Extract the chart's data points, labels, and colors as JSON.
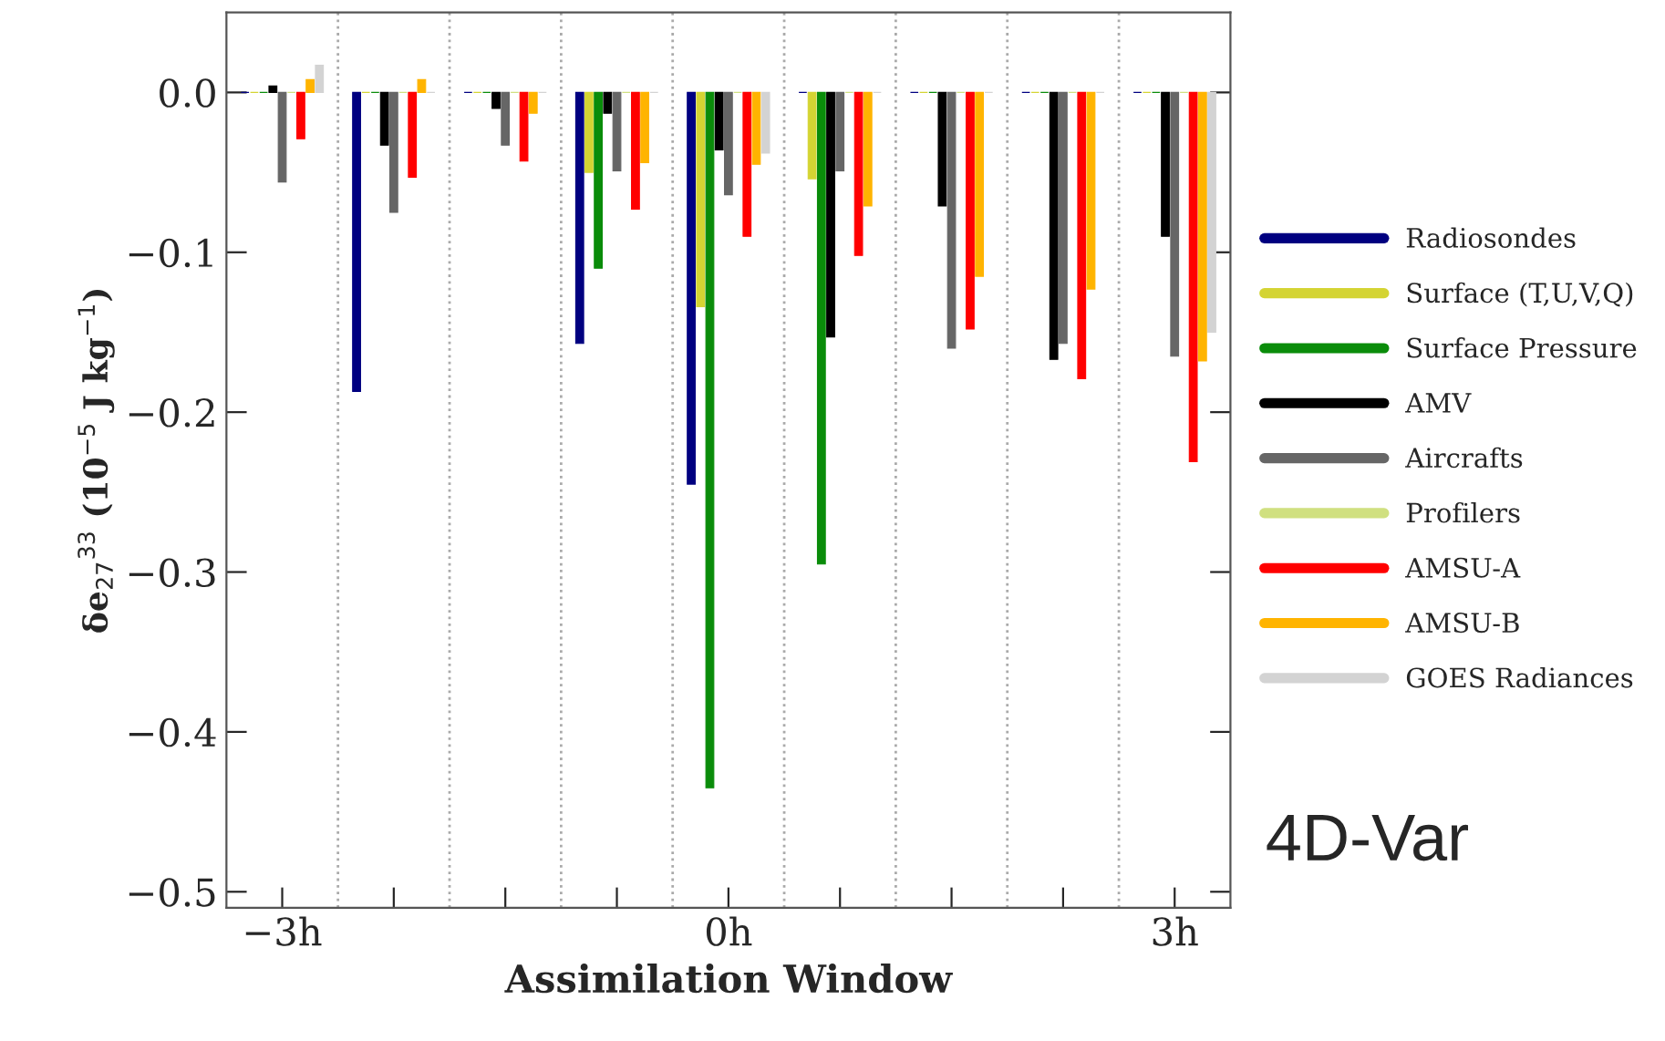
{
  "chart_data": {
    "type": "bar",
    "xlabel": "Assimilation Window",
    "ylabel": "δe$_{27}$$^{33}$ (10$^{−5}$ J kg$^{−1}$)",
    "x": [
      -3,
      -2.25,
      -1.5,
      -0.75,
      0,
      0.75,
      1.5,
      2.25,
      3
    ],
    "xlim": [
      -3.375,
      3.375
    ],
    "xticks": [
      {
        "value": -3,
        "label": "−3h"
      },
      {
        "value": -2.25,
        "label": null
      },
      {
        "value": -1.5,
        "label": null
      },
      {
        "value": -0.75,
        "label": null
      },
      {
        "value": 0,
        "label": "0h"
      },
      {
        "value": 0.75,
        "label": null
      },
      {
        "value": 1.5,
        "label": null
      },
      {
        "value": 2.25,
        "label": null
      },
      {
        "value": 3,
        "label": "3h"
      }
    ],
    "ylim": [
      -0.51,
      0.05
    ],
    "yticks": [
      {
        "value": 0,
        "label": "0.0"
      },
      {
        "value": -0.1,
        "label": "−0.1"
      },
      {
        "value": -0.2,
        "label": "−0.2"
      },
      {
        "value": -0.3,
        "label": "−0.3"
      },
      {
        "value": -0.4,
        "label": "−0.4"
      },
      {
        "value": -0.5,
        "label": "−0.5"
      }
    ],
    "series": [
      {
        "name": "Radiosondes",
        "color": "#000080",
        "values": [
          0,
          -0.187,
          0,
          -0.157,
          -0.245,
          0,
          0,
          0,
          0
        ]
      },
      {
        "name": "Surface (T,U,V,Q)",
        "color": "#d4d433",
        "values": [
          0,
          0,
          0,
          -0.05,
          -0.134,
          -0.054,
          0,
          0,
          0
        ]
      },
      {
        "name": "Surface Pressure",
        "color": "#0a8c0a",
        "values": [
          0,
          0,
          0,
          -0.11,
          -0.435,
          -0.295,
          0,
          0,
          0
        ]
      },
      {
        "name": "AMV",
        "color": "#000000",
        "values": [
          0.004,
          -0.033,
          -0.01,
          -0.013,
          -0.036,
          -0.153,
          -0.071,
          -0.167,
          -0.09
        ]
      },
      {
        "name": "Aircrafts",
        "color": "#666666",
        "values": [
          -0.056,
          -0.075,
          -0.033,
          -0.049,
          -0.064,
          -0.049,
          -0.16,
          -0.157,
          -0.165
        ]
      },
      {
        "name": "Profilers",
        "color": "#d0e080",
        "values": [
          0,
          0,
          0,
          0,
          0,
          0,
          0,
          0,
          0
        ]
      },
      {
        "name": "AMSU-A",
        "color": "#ff0000",
        "values": [
          -0.029,
          -0.053,
          -0.043,
          -0.073,
          -0.09,
          -0.102,
          -0.148,
          -0.179,
          -0.231
        ]
      },
      {
        "name": "AMSU-B",
        "color": "#ffb400",
        "values": [
          0.008,
          0.008,
          -0.013,
          -0.044,
          -0.045,
          -0.071,
          -0.115,
          -0.123,
          -0.168
        ]
      },
      {
        "name": "GOES Radiances",
        "color": "#d3d3d3",
        "values": [
          0.017,
          0,
          0,
          0,
          -0.038,
          0,
          0,
          0,
          -0.15
        ]
      }
    ],
    "ref_lines": [
      {
        "axis": "x",
        "value": -2.625,
        "color": "#aaaaaa",
        "line_style": "dotted"
      },
      {
        "axis": "x",
        "value": -1.875,
        "color": "#aaaaaa",
        "line_style": "dotted"
      },
      {
        "axis": "x",
        "value": -1.125,
        "color": "#aaaaaa",
        "line_style": "dotted"
      },
      {
        "axis": "x",
        "value": -0.375,
        "color": "#aaaaaa",
        "line_style": "dotted"
      },
      {
        "axis": "x",
        "value": 0.375,
        "color": "#aaaaaa",
        "line_style": "dotted"
      },
      {
        "axis": "x",
        "value": 1.125,
        "color": "#aaaaaa",
        "line_style": "dotted"
      },
      {
        "axis": "x",
        "value": 1.875,
        "color": "#aaaaaa",
        "line_style": "dotted"
      },
      {
        "axis": "x",
        "value": 2.625,
        "color": "#aaaaaa",
        "line_style": "dotted"
      }
    ],
    "annotations": [
      "4D-Var"
    ],
    "legend": "right",
    "grid": false
  }
}
